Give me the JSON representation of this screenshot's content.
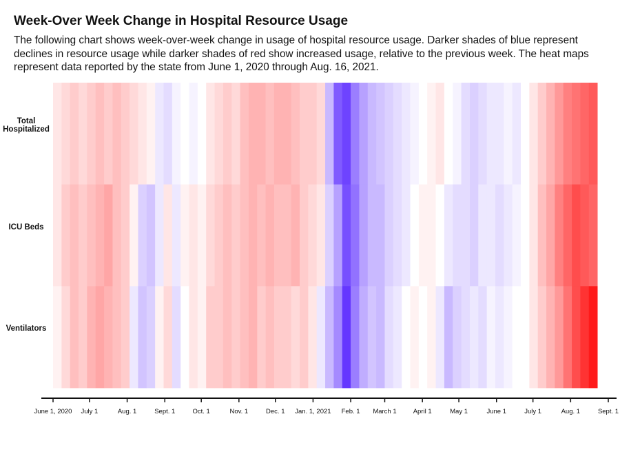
{
  "chart_data": {
    "type": "heatmap",
    "title": "Week-Over Week Change in Hospital Resource Usage",
    "subtitle": "The following chart shows week-over-week change in usage of hospital resource usage. Darker shades of blue represent declines in resource usage while darker shades of red show increased usage, relative to the previous week. The heat maps represent data reported by the state from June 1, 2020 through Aug. 16, 2021.",
    "x": [
      0,
      7,
      14,
      21,
      28,
      35,
      42,
      49,
      56,
      63,
      70,
      77,
      84,
      91,
      98,
      105,
      112,
      119,
      126,
      133,
      140,
      147,
      154,
      161,
      168,
      175,
      182,
      189,
      196,
      203,
      210,
      217,
      224,
      231,
      238,
      245,
      252,
      259,
      266,
      273,
      280,
      287,
      294,
      301,
      308,
      315,
      322,
      329,
      336,
      343,
      350,
      357,
      364,
      371,
      378,
      385,
      392,
      399,
      406,
      413,
      420,
      427,
      434,
      441
    ],
    "xlim": [
      0,
      457
    ],
    "xticks": [
      {
        "value": 0,
        "label": "June 1, 2020"
      },
      {
        "value": 30,
        "label": "July 1"
      },
      {
        "value": 61,
        "label": "Aug. 1"
      },
      {
        "value": 92,
        "label": "Sept. 1"
      },
      {
        "value": 122,
        "label": "Oct. 1"
      },
      {
        "value": 153,
        "label": "Nov. 1"
      },
      {
        "value": 183,
        "label": "Dec. 1"
      },
      {
        "value": 214,
        "label": "Jan. 1, 2021"
      },
      {
        "value": 245,
        "label": "Feb. 1"
      },
      {
        "value": 273,
        "label": "March 1"
      },
      {
        "value": 304,
        "label": "April 1"
      },
      {
        "value": 334,
        "label": "May 1"
      },
      {
        "value": 365,
        "label": "June 1"
      },
      {
        "value": 395,
        "label": "July 1"
      },
      {
        "value": 426,
        "label": "Aug. 1"
      },
      {
        "value": 457,
        "label": "Sept. 1"
      }
    ],
    "zlim": [
      -1,
      1
    ],
    "colors": {
      "negative": "#4a14ff",
      "positive": "#ff0000"
    },
    "series": [
      {
        "name": "Total Hospitalized",
        "values": [
          0.1,
          0.15,
          0.2,
          0.15,
          0.2,
          0.25,
          0.2,
          0.25,
          0.2,
          0.15,
          0.1,
          0.05,
          -0.1,
          -0.15,
          -0.05,
          0,
          -0.05,
          0,
          0.1,
          0.15,
          0.2,
          0.15,
          0.25,
          0.3,
          0.3,
          0.25,
          0.3,
          0.3,
          0.25,
          0.2,
          0.2,
          0.15,
          -0.3,
          -0.7,
          -0.8,
          -0.55,
          -0.4,
          -0.3,
          -0.25,
          -0.2,
          -0.15,
          -0.1,
          -0.05,
          0,
          0.05,
          0.1,
          0,
          -0.05,
          -0.15,
          -0.2,
          -0.15,
          -0.1,
          -0.1,
          -0.05,
          -0.1,
          0,
          0.1,
          0.2,
          0.3,
          0.4,
          0.5,
          0.55,
          0.6,
          0.65
        ]
      },
      {
        "name": "ICU Beds",
        "values": [
          0.1,
          0.2,
          0.25,
          0.2,
          0.25,
          0.3,
          0.35,
          0.25,
          0.2,
          0.05,
          -0.2,
          -0.25,
          -0.1,
          0.1,
          -0.1,
          0.05,
          0.1,
          0.05,
          0.15,
          0.2,
          0.25,
          0.2,
          0.25,
          0.3,
          0.25,
          0.3,
          0.25,
          0.25,
          0.3,
          0.2,
          0.15,
          0.1,
          -0.2,
          -0.4,
          -0.75,
          -0.6,
          -0.4,
          -0.3,
          -0.3,
          -0.2,
          -0.15,
          -0.1,
          0,
          0.05,
          0.05,
          0,
          -0.1,
          -0.15,
          -0.15,
          -0.2,
          -0.1,
          -0.1,
          -0.15,
          -0.1,
          -0.05,
          0,
          0.1,
          0.25,
          0.35,
          0.5,
          0.6,
          0.7,
          0.65,
          0.6
        ]
      },
      {
        "name": "Ventilators",
        "values": [
          0.05,
          0.15,
          0.25,
          0.2,
          0.3,
          0.35,
          0.3,
          0.25,
          0.2,
          -0.1,
          -0.25,
          -0.2,
          0.05,
          0.15,
          -0.15,
          0,
          0.1,
          0.05,
          0.2,
          0.2,
          0.25,
          0.2,
          0.25,
          0.3,
          0.2,
          0.25,
          0.2,
          0.2,
          0.15,
          0.2,
          0.1,
          -0.1,
          -0.3,
          -0.5,
          -0.85,
          -0.55,
          -0.35,
          -0.25,
          -0.3,
          -0.15,
          -0.1,
          0,
          0.05,
          0,
          0.05,
          -0.1,
          -0.3,
          -0.2,
          -0.15,
          -0.1,
          -0.15,
          -0.05,
          -0.1,
          -0.05,
          0,
          0,
          0.1,
          0.2,
          0.3,
          0.4,
          0.55,
          0.7,
          0.8,
          0.9
        ]
      }
    ]
  }
}
